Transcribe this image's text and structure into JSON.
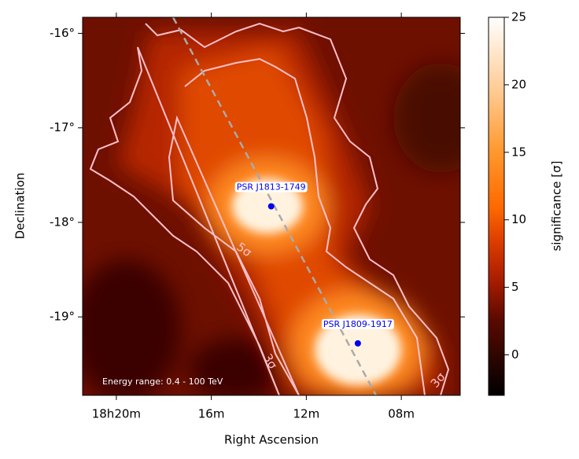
{
  "chart_data": {
    "type": "skymap",
    "xlabel": "Right Ascension",
    "ylabel": "Declination",
    "xlim": [
      21.42,
      5.52
    ],
    "ylim": [
      -19.83,
      -15.83
    ],
    "xticks": [
      {
        "value": 20,
        "label": "18h20m"
      },
      {
        "value": 16,
        "label": "16m"
      },
      {
        "value": 12,
        "label": "12m"
      },
      {
        "value": 8,
        "label": "08m"
      }
    ],
    "yticks": [
      {
        "value": -16,
        "label": "-16°"
      },
      {
        "value": -17,
        "label": "-17°"
      },
      {
        "value": -18,
        "label": "-18°"
      },
      {
        "value": -19,
        "label": "-19°"
      }
    ],
    "colorbar": {
      "label": "significance [σ]",
      "lim": [
        -3,
        25
      ],
      "ticks": [
        0,
        5,
        10,
        15,
        20,
        25
      ]
    },
    "sources": [
      {
        "name": "PSR J1813-1749",
        "ra": 13.48,
        "dec": -17.83,
        "color": "#0000ee"
      },
      {
        "name": "PSR J1809-1917",
        "ra": 9.83,
        "dec": -19.28,
        "color": "#0000ee"
      }
    ],
    "contour_labels": [
      "5σ",
      "3σ",
      "3σ"
    ],
    "annotation": "Energy range: 0.4 - 100 TeV"
  }
}
